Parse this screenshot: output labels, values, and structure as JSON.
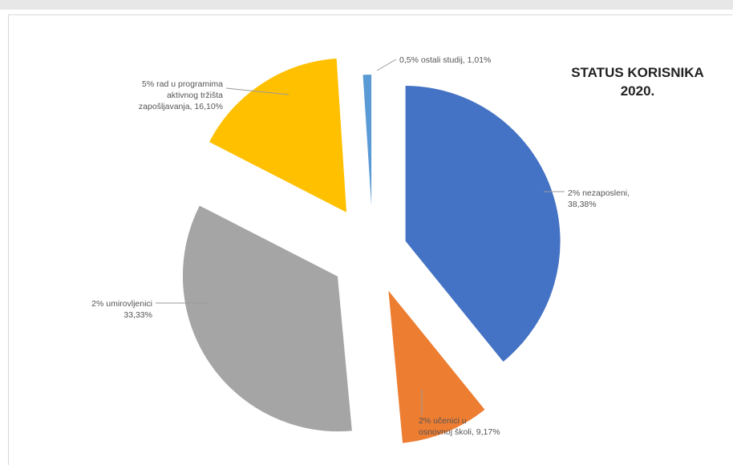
{
  "chart_data": {
    "type": "pie",
    "title": [
      "STATUS KORISNIKA",
      "2020."
    ],
    "slices": [
      {
        "label": [
          "2% nezaposleni,",
          "38,38%"
        ],
        "value": 38.38,
        "color": "#4472C4"
      },
      {
        "label": [
          "2% učenici u",
          "osnovnoj školi, 9,17%"
        ],
        "value": 9.17,
        "color": "#ED7D31"
      },
      {
        "label": [
          "2% umirovljenici",
          "33,33%"
        ],
        "value": 33.33,
        "color": "#A5A5A5"
      },
      {
        "label": [
          "5% rad u programima",
          "aktivnog tržišta",
          "zapošljavanja, 16,10%"
        ],
        "value": 16.1,
        "color": "#FFC000"
      },
      {
        "label": [
          "0,5% ostali studij, 1,01%"
        ],
        "value": 1.01,
        "color": "#5B9BD5"
      }
    ]
  }
}
